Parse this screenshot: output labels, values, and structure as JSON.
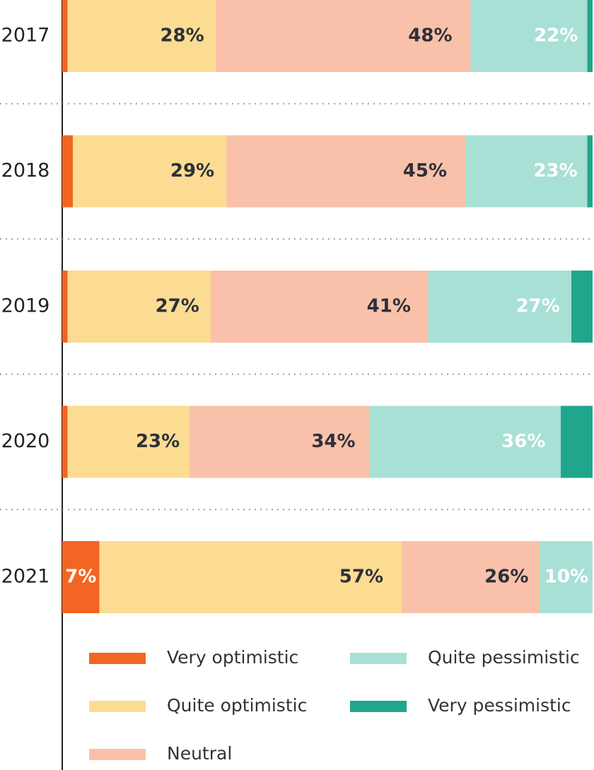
{
  "chart_data": {
    "type": "stacked-bar-horizontal",
    "categories": [
      "2017",
      "2018",
      "2019",
      "2020",
      "2021"
    ],
    "xlim": [
      0,
      100
    ],
    "series": [
      {
        "name": "Very optimistic",
        "color": "#f26522",
        "values": [
          1,
          2,
          1,
          1,
          7
        ],
        "value_labels": [
          null,
          null,
          null,
          null,
          "7%"
        ]
      },
      {
        "name": "Quite optimistic",
        "color": "#fcdc92",
        "values": [
          28,
          29,
          27,
          23,
          57
        ],
        "value_labels": [
          "28%",
          "29%",
          "27%",
          "23%",
          "57%"
        ]
      },
      {
        "name": "Neutral",
        "color": "#f9c1aa",
        "values": [
          48,
          45,
          41,
          34,
          26
        ],
        "value_labels": [
          "48%",
          "45%",
          "41%",
          "34%",
          "26%"
        ]
      },
      {
        "name": "Quite pessimistic",
        "color": "#a8e0d6",
        "values": [
          22,
          23,
          27,
          36,
          10
        ],
        "value_labels": [
          "22%",
          "23%",
          "27%",
          "36%",
          "10%"
        ]
      },
      {
        "name": "Very pessimistic",
        "color": "#1fa68c",
        "values": [
          1,
          1,
          4,
          6,
          0
        ],
        "value_labels": [
          null,
          null,
          null,
          null,
          null
        ]
      }
    ]
  }
}
